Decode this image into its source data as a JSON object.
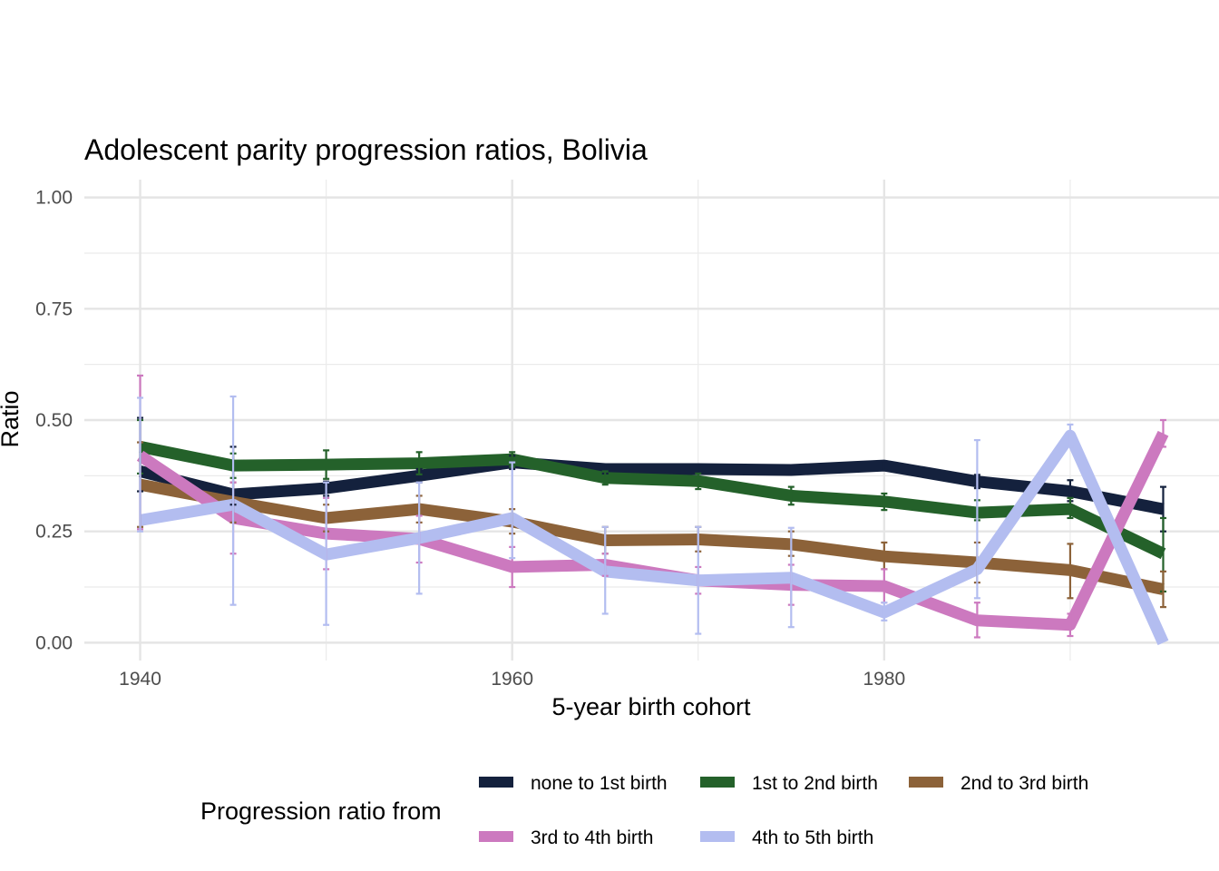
{
  "chart_data": {
    "type": "line",
    "title": "Adolescent parity progression ratios,  Bolivia",
    "xlabel": "5-year birth cohort",
    "ylabel": "Ratio",
    "xlim": [
      1937,
      1998
    ],
    "ylim": [
      -0.04,
      1.04
    ],
    "x_ticks": [
      1940,
      1960,
      1980
    ],
    "x_tick_labels": [
      "1940",
      "1960",
      "1980"
    ],
    "y_ticks": [
      0,
      0.25,
      0.5,
      0.75,
      1.0
    ],
    "y_tick_labels": [
      "0.00",
      "0.25",
      "0.50",
      "0.75",
      "1.00"
    ],
    "grid": true,
    "legend": {
      "title": "Progression ratio from",
      "position": "bottom"
    },
    "x": [
      1940,
      1945,
      1950,
      1955,
      1960,
      1965,
      1970,
      1975,
      1980,
      1985,
      1990,
      1995
    ],
    "series": [
      {
        "name": "none to 1st birth",
        "color": "#14213d",
        "values": [
          0.385,
          0.333,
          0.347,
          0.375,
          0.405,
          0.39,
          0.39,
          0.388,
          0.398,
          0.362,
          0.34,
          0.3
        ],
        "lower": [
          0.34,
          0.31,
          0.33,
          0.36,
          0.39,
          0.38,
          0.38,
          0.378,
          0.388,
          0.347,
          0.318,
          0.25
        ],
        "upper": [
          0.505,
          0.44,
          0.362,
          0.39,
          0.42,
          0.4,
          0.4,
          0.398,
          0.408,
          0.377,
          0.365,
          0.35
        ]
      },
      {
        "name": "1st to 2nd birth",
        "color": "#24612a",
        "values": [
          0.44,
          0.398,
          0.4,
          0.403,
          0.412,
          0.37,
          0.363,
          0.33,
          0.317,
          0.292,
          0.3,
          0.2
        ],
        "lower": [
          0.38,
          0.37,
          0.368,
          0.378,
          0.395,
          0.355,
          0.345,
          0.31,
          0.298,
          0.275,
          0.28,
          0.115
        ],
        "upper": [
          0.5,
          0.425,
          0.432,
          0.428,
          0.428,
          0.385,
          0.38,
          0.35,
          0.335,
          0.32,
          0.325,
          0.28
        ]
      },
      {
        "name": "2nd to 3rd birth",
        "color": "#8c6239",
        "values": [
          0.355,
          0.316,
          0.28,
          0.3,
          0.272,
          0.23,
          0.232,
          0.221,
          0.194,
          0.18,
          0.163,
          0.12
        ],
        "lower": [
          0.26,
          0.27,
          0.25,
          0.27,
          0.245,
          0.2,
          0.205,
          0.195,
          0.165,
          0.135,
          0.1,
          0.08
        ],
        "upper": [
          0.45,
          0.36,
          0.31,
          0.33,
          0.3,
          0.26,
          0.26,
          0.25,
          0.225,
          0.225,
          0.222,
          0.16
        ]
      },
      {
        "name": "3rd to 4th birth",
        "color": "#cc79bf",
        "values": [
          0.42,
          0.28,
          0.245,
          0.233,
          0.17,
          0.175,
          0.14,
          0.13,
          0.127,
          0.05,
          0.04,
          0.47
        ],
        "lower": [
          0.255,
          0.2,
          0.165,
          0.18,
          0.125,
          0.15,
          0.11,
          0.085,
          0.09,
          0.012,
          0.015,
          0.44
        ],
        "upper": [
          0.6,
          0.36,
          0.325,
          0.285,
          0.215,
          0.2,
          0.17,
          0.175,
          0.165,
          0.09,
          0.065,
          0.5
        ]
      },
      {
        "name": "4th to 5th birth",
        "color": "#b3bdf0",
        "values": [
          0.275,
          0.31,
          0.198,
          0.235,
          0.28,
          0.16,
          0.14,
          0.146,
          0.068,
          0.165,
          0.465,
          0.0
        ],
        "lower": [
          0.25,
          0.085,
          0.04,
          0.11,
          0.19,
          0.065,
          0.02,
          0.035,
          0.05,
          0.1,
          0.44,
          0.0
        ],
        "upper": [
          0.55,
          0.553,
          0.36,
          0.36,
          0.405,
          0.26,
          0.26,
          0.258,
          0.09,
          0.455,
          0.49,
          0.0
        ]
      }
    ]
  }
}
